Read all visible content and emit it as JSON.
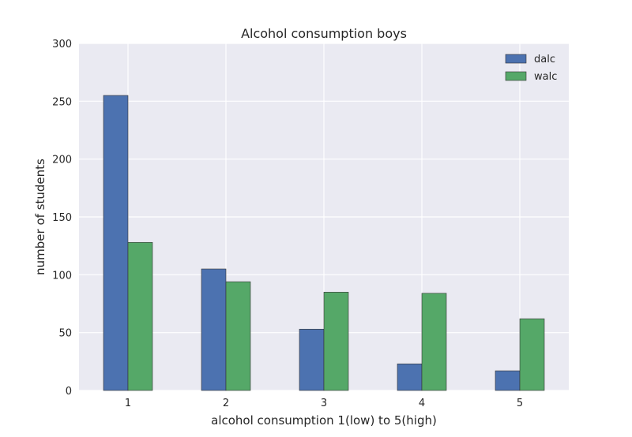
{
  "chart_data": {
    "type": "bar",
    "title": "Alcohol consumption boys",
    "xlabel": "alcohol consumption 1(low) to 5(high)",
    "ylabel": "number of students",
    "categories": [
      "1",
      "2",
      "3",
      "4",
      "5"
    ],
    "series": [
      {
        "name": "dalc",
        "values": [
          255,
          105,
          53,
          23,
          17
        ],
        "color": "#4c72b0"
      },
      {
        "name": "walc",
        "values": [
          128,
          94,
          85,
          84,
          62
        ],
        "color": "#55a868"
      }
    ],
    "ylim": [
      0,
      300
    ],
    "yticks": [
      0,
      50,
      100,
      150,
      200,
      250,
      300
    ],
    "grid": true,
    "legend_position": "top-right",
    "background": "#eaeaf2"
  }
}
